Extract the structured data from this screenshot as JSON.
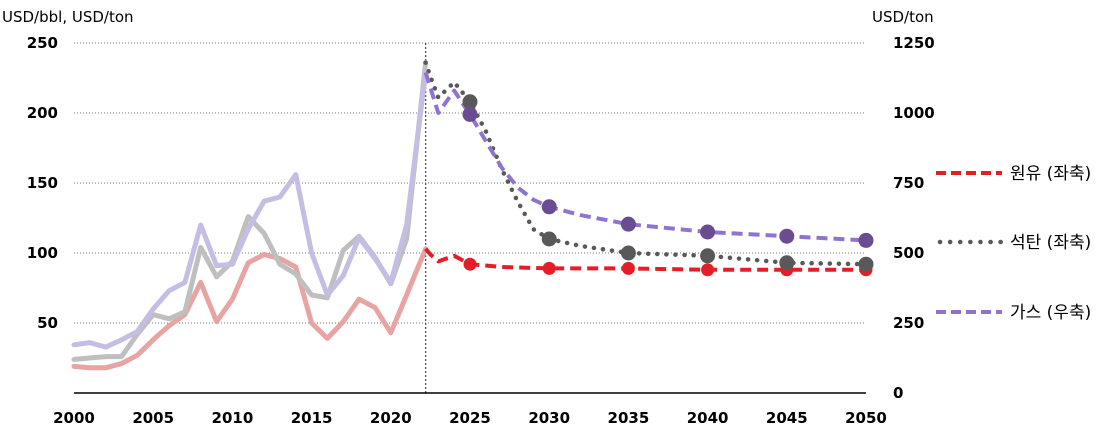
{
  "chart_data": {
    "type": "line",
    "left_axis": {
      "unit_label": "USD/bbl, USD/ton",
      "ticks": [
        50,
        100,
        150,
        200,
        250
      ],
      "range": [
        0,
        250
      ]
    },
    "right_axis": {
      "unit_label": "USD/ton",
      "ticks": [
        0,
        250,
        500,
        750,
        1000,
        1250
      ],
      "range": [
        0,
        1250
      ]
    },
    "x_axis": {
      "ticks": [
        2000,
        2005,
        2010,
        2015,
        2020,
        2025,
        2030,
        2035,
        2040,
        2045,
        2050
      ],
      "range": [
        2000,
        2050
      ]
    },
    "forecast_start": 2022.2,
    "grid": true,
    "legend_position": "right",
    "series": [
      {
        "name": "원유 (좌축)",
        "axis": "left",
        "color": "#e41e26",
        "historical_color": "#e8a3a3",
        "style": "dashed",
        "historical": [
          [
            2000,
            19
          ],
          [
            2001,
            18
          ],
          [
            2002,
            18
          ],
          [
            2003,
            21
          ],
          [
            2004,
            27
          ],
          [
            2005,
            38
          ],
          [
            2006,
            48
          ],
          [
            2007,
            56
          ],
          [
            2008,
            79
          ],
          [
            2009,
            51
          ],
          [
            2010,
            67
          ],
          [
            2011,
            93
          ],
          [
            2012,
            99
          ],
          [
            2013,
            96
          ],
          [
            2014,
            90
          ],
          [
            2015,
            50
          ],
          [
            2016,
            39
          ],
          [
            2017,
            51
          ],
          [
            2018,
            67
          ],
          [
            2019,
            61
          ],
          [
            2020,
            43
          ],
          [
            2021,
            70
          ],
          [
            2022.2,
            103
          ]
        ],
        "forecast": [
          [
            2022.2,
            103
          ],
          [
            2022.5,
            99
          ],
          [
            2023,
            94
          ],
          [
            2024,
            98
          ],
          [
            2025,
            92
          ],
          [
            2027,
            90
          ],
          [
            2030,
            89
          ],
          [
            2035,
            89
          ],
          [
            2040,
            88
          ],
          [
            2045,
            88
          ],
          [
            2050,
            88
          ]
        ],
        "markers": [
          [
            2025,
            92
          ],
          [
            2030,
            89
          ],
          [
            2035,
            89
          ],
          [
            2040,
            88
          ],
          [
            2045,
            88
          ],
          [
            2050,
            88
          ]
        ]
      },
      {
        "name": "석탄 (좌축)",
        "axis": "left",
        "color": "#595959",
        "historical_color": "#bfbfbf",
        "style": "dotted",
        "historical": [
          [
            2000,
            24
          ],
          [
            2001,
            25
          ],
          [
            2002,
            26
          ],
          [
            2003,
            26
          ],
          [
            2004,
            42
          ],
          [
            2005,
            56
          ],
          [
            2006,
            53
          ],
          [
            2007,
            58
          ],
          [
            2008,
            104
          ],
          [
            2009,
            83
          ],
          [
            2010,
            94
          ],
          [
            2011,
            126
          ],
          [
            2012,
            114
          ],
          [
            2013,
            92
          ],
          [
            2014,
            85
          ],
          [
            2015,
            70
          ],
          [
            2016,
            68
          ],
          [
            2017,
            102
          ],
          [
            2018,
            112
          ],
          [
            2019,
            97
          ],
          [
            2020,
            78
          ],
          [
            2021,
            110
          ],
          [
            2022.2,
            236
          ]
        ],
        "forecast": [
          [
            2022.2,
            236
          ],
          [
            2022.5,
            226
          ],
          [
            2023,
            211
          ],
          [
            2024,
            222
          ],
          [
            2025,
            208
          ],
          [
            2026,
            187
          ],
          [
            2027,
            160
          ],
          [
            2028,
            137
          ],
          [
            2029,
            117
          ],
          [
            2030,
            110
          ],
          [
            2032,
            105
          ],
          [
            2035,
            100
          ],
          [
            2040,
            98
          ],
          [
            2045,
            93
          ],
          [
            2050,
            92
          ]
        ],
        "markers": [
          [
            2025,
            208
          ],
          [
            2030,
            110
          ],
          [
            2035,
            100
          ],
          [
            2040,
            98
          ],
          [
            2045,
            93
          ],
          [
            2050,
            92
          ]
        ]
      },
      {
        "name": "가스 (우축)",
        "axis": "right",
        "color": "#8f74cf",
        "historical_color": "#c6bde4",
        "style": "dashed",
        "historical": [
          [
            2000,
            172
          ],
          [
            2001,
            180
          ],
          [
            2002,
            164
          ],
          [
            2003,
            190
          ],
          [
            2004,
            220
          ],
          [
            2005,
            300
          ],
          [
            2006,
            365
          ],
          [
            2007,
            395
          ],
          [
            2008,
            600
          ],
          [
            2009,
            455
          ],
          [
            2010,
            460
          ],
          [
            2011,
            585
          ],
          [
            2012,
            685
          ],
          [
            2013,
            700
          ],
          [
            2014,
            780
          ],
          [
            2015,
            500
          ],
          [
            2016,
            350
          ],
          [
            2017,
            420
          ],
          [
            2018,
            555
          ],
          [
            2019,
            480
          ],
          [
            2020,
            395
          ],
          [
            2021,
            600
          ],
          [
            2022.2,
            1145
          ]
        ],
        "forecast": [
          [
            2022.2,
            1145
          ],
          [
            2023,
            1000
          ],
          [
            2024,
            1080
          ],
          [
            2025,
            995
          ],
          [
            2026,
            900
          ],
          [
            2027,
            805
          ],
          [
            2028,
            735
          ],
          [
            2029,
            690
          ],
          [
            2030,
            665
          ],
          [
            2032,
            635
          ],
          [
            2035,
            603
          ],
          [
            2040,
            575
          ],
          [
            2045,
            560
          ],
          [
            2050,
            545
          ]
        ],
        "markers": [
          [
            2025,
            995
          ],
          [
            2030,
            665
          ],
          [
            2035,
            603
          ],
          [
            2040,
            575
          ],
          [
            2045,
            560
          ],
          [
            2050,
            545
          ]
        ]
      }
    ]
  }
}
